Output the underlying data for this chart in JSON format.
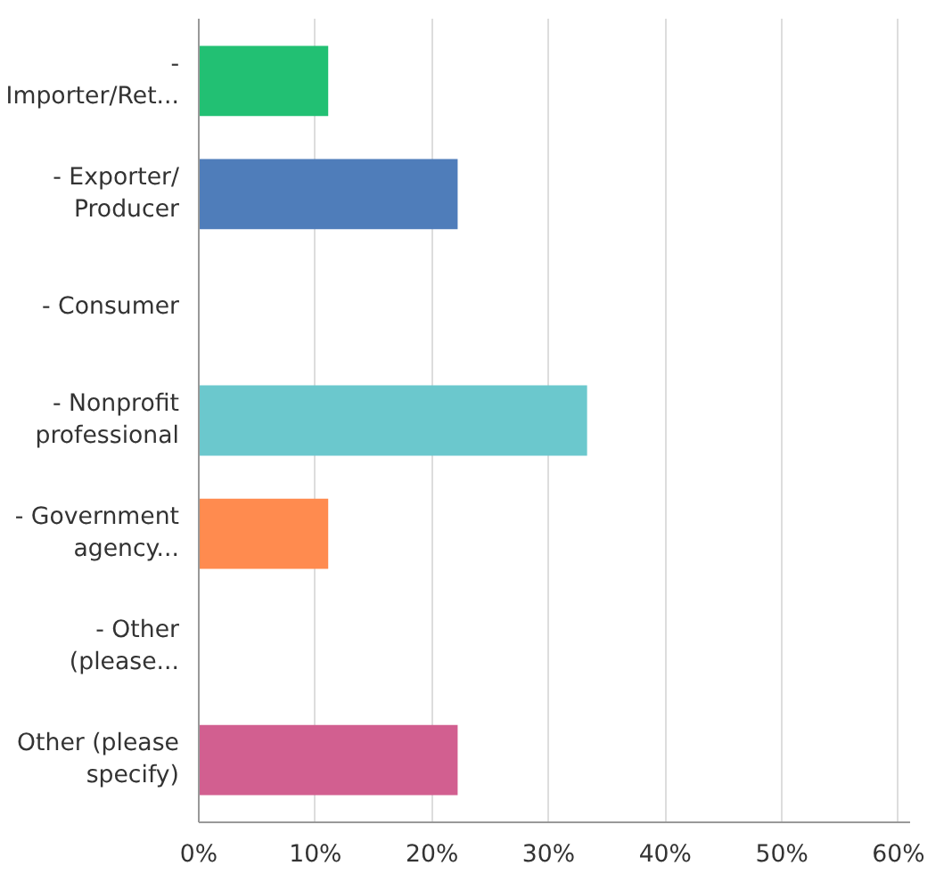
{
  "chart_data": {
    "type": "bar",
    "orientation": "horizontal",
    "categories": [
      "- Importer/Ret...",
      "- Exporter/ Producer",
      "- Consumer",
      "- Nonprofit professional",
      "- Government agency...",
      "- Other (please...",
      "Other (please specify)"
    ],
    "values": [
      11.1,
      22.2,
      0,
      33.3,
      11.1,
      0,
      22.2
    ],
    "colors": [
      "#22c073",
      "#4f7dba",
      "#f7c94f",
      "#6bc8cd",
      "#ff8b4f",
      "#a87cc0",
      "#d25f90"
    ],
    "xlim": [
      0,
      61
    ],
    "xticks": [
      {
        "value": 0,
        "label": "0%"
      },
      {
        "value": 10,
        "label": "10%"
      },
      {
        "value": 20,
        "label": "20%"
      },
      {
        "value": 30,
        "label": "30%"
      },
      {
        "value": 40,
        "label": "40%"
      },
      {
        "value": 50,
        "label": "50%"
      },
      {
        "value": 60,
        "label": "60%"
      }
    ],
    "grid": "x"
  }
}
